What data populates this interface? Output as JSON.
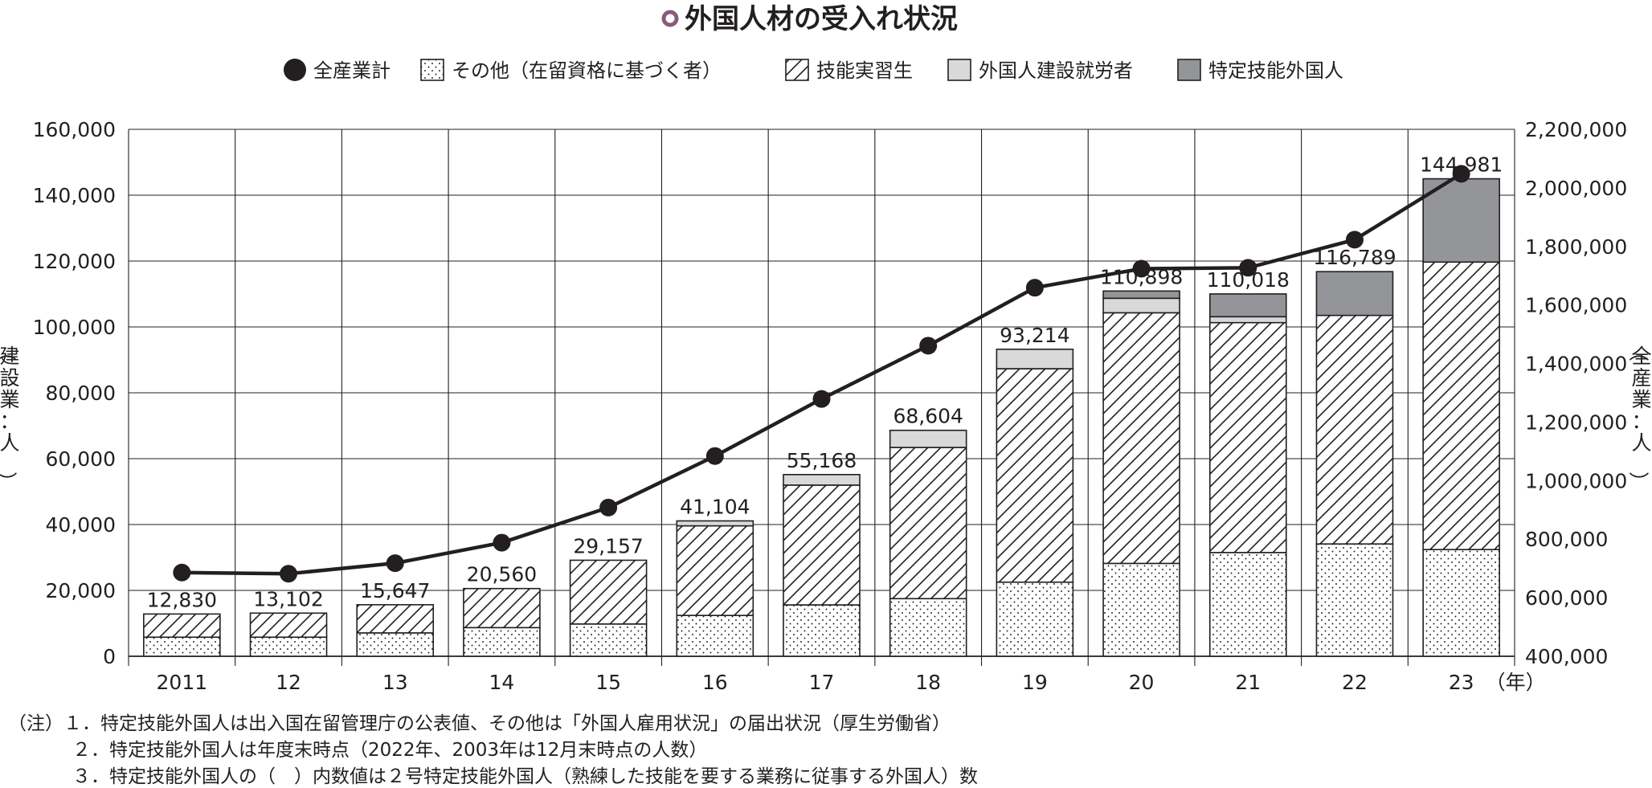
{
  "chart_data": {
    "type": "bar",
    "title": "外国人材の受入れ状況",
    "categories": [
      "2011",
      "12",
      "13",
      "14",
      "15",
      "16",
      "17",
      "18",
      "19",
      "20",
      "21",
      "22",
      "23"
    ],
    "x_unit_label": "（年）",
    "series": [
      {
        "name": "その他（在留資格に基づく者）",
        "kind": "bar",
        "pattern": "dots",
        "values": [
          5800,
          5800,
          7100,
          8700,
          9800,
          12400,
          15600,
          17500,
          22500,
          28200,
          31500,
          34100,
          32400
        ]
      },
      {
        "name": "技能実習生",
        "kind": "bar",
        "pattern": "hatch",
        "values": [
          7030,
          7302,
          8547,
          11860,
          19357,
          27204,
          36368,
          45904,
          64814,
          76100,
          69800,
          69400,
          87300
        ]
      },
      {
        "name": "外国人建設就労者",
        "kind": "bar",
        "pattern": "light-gray",
        "values": [
          0,
          0,
          0,
          0,
          0,
          1500,
          3200,
          5200,
          5900,
          4400,
          1800,
          0,
          0
        ]
      },
      {
        "name": "特定技能外国人",
        "kind": "bar",
        "pattern": "dark-gray",
        "values": [
          0,
          0,
          0,
          0,
          0,
          0,
          0,
          0,
          0,
          2198,
          6918,
          13289,
          25281
        ]
      },
      {
        "name": "全産業計",
        "kind": "line",
        "axis": "right",
        "values": [
          686000,
          682000,
          718000,
          788000,
          908000,
          1084000,
          1279000,
          1461000,
          1659000,
          1724000,
          1727000,
          1823000,
          2048000
        ]
      }
    ],
    "totals_labels": [
      "12,830",
      "13,102",
      "15,647",
      "20,560",
      "29,157",
      "41,104",
      "55,168",
      "68,604",
      "93,214",
      "110,898",
      "110,018",
      "116,789",
      "144,981"
    ],
    "left_axis": {
      "label": "（建設業：人）",
      "ylim": [
        0,
        160000
      ],
      "ticks": [
        "0",
        "20,000",
        "40,000",
        "60,000",
        "80,000",
        "100,000",
        "120,000",
        "140,000",
        "160,000"
      ]
    },
    "right_axis": {
      "label": "（全産業：人）",
      "ylim": [
        400000,
        2200000
      ],
      "ticks": [
        "400,000",
        "600,000",
        "800,000",
        "1,000,000",
        "1,200,000",
        "1,400,000",
        "1,600,000",
        "1,800,000",
        "2,000,000",
        "2,200,000"
      ]
    },
    "grid": true,
    "legend_position": "top",
    "colors": {
      "ink": "#231f20",
      "light_gray": "#d9d9d9",
      "dark_gray": "#939598",
      "title_mark": "#8a5a7a"
    }
  },
  "notes": [
    "（注）１．特定技能外国人は出入国在留管理庁の公表値、その他は「外国人雇用状況」の届出状況（厚生労働省）",
    "２．特定技能外国人は年度末時点（2022年、2003年は12月末時点の人数）",
    "３．特定技能外国人の（　）内数値は２号特定技能外国人（熟練した技能を要する業務に従事する外国人）数"
  ]
}
